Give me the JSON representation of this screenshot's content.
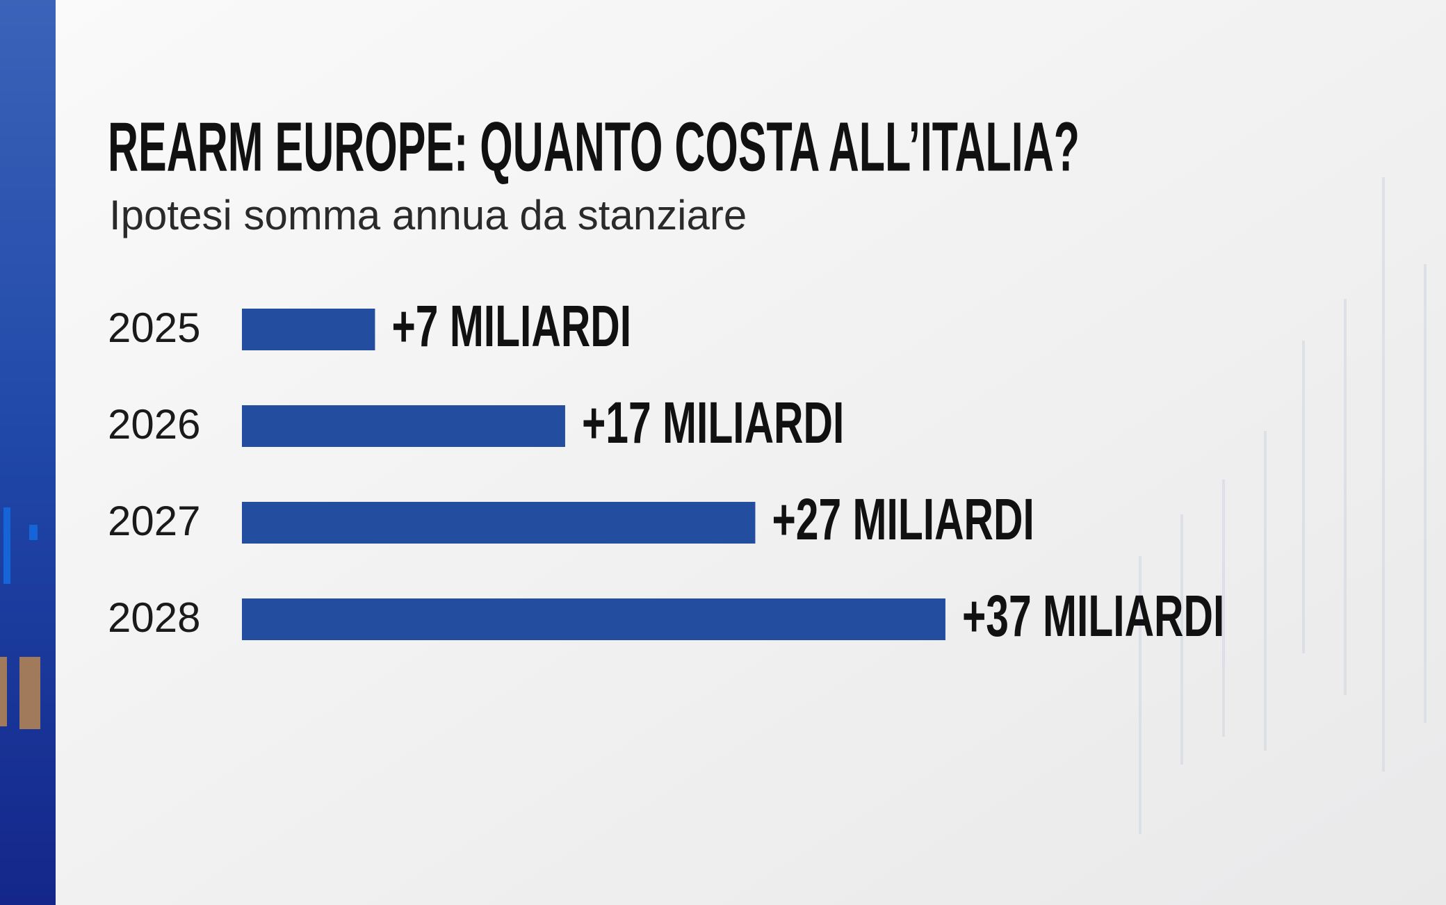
{
  "chart_data": {
    "type": "bar",
    "orientation": "horizontal",
    "title": "REARM EUROPE: QUANTO COSTA ALL’ITALIA?",
    "subtitle": "Ipotesi somma annua da stanziare",
    "categories": [
      "2025",
      "2026",
      "2027",
      "2028"
    ],
    "values": [
      7,
      17,
      27,
      37
    ],
    "value_labels": [
      "+7 MILIARDI",
      "+17 MILIARDI",
      "+27 MILIARDI",
      "+37 MILIARDI"
    ],
    "color": "#234ea0"
  }
}
